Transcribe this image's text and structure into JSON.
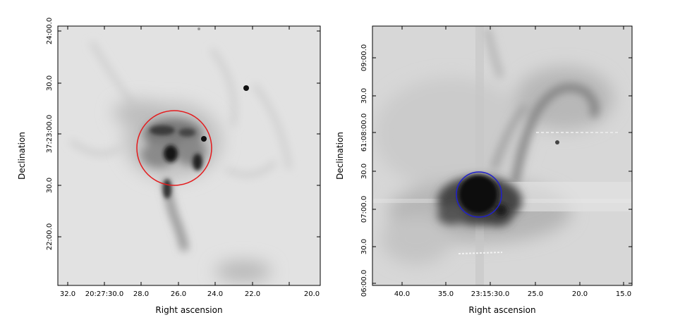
{
  "panels": [
    {
      "xlabel": "Right ascension",
      "ylabel": "Declination",
      "x_ticks": [
        "32.0",
        "20:27:30.0",
        "28.0",
        "26.0",
        "24.0",
        "22.0",
        "20.0"
      ],
      "y_ticks": [
        "24:00.0",
        "30.0",
        "37:23:00.0",
        "30.0",
        "22:00.0"
      ],
      "marker": {
        "shape": "circle",
        "color": "#e41a1c"
      }
    },
    {
      "xlabel": "Right ascension",
      "ylabel": "Declination",
      "x_ticks": [
        "40.0",
        "35.0",
        "23:15:30.0",
        "25.0",
        "20.0",
        "15.0"
      ],
      "y_ticks": [
        "09:00.0",
        "30.0",
        "61:08:00.0",
        "30.0",
        "07:00.0",
        "30.0",
        "06:00.0"
      ],
      "marker": {
        "shape": "circle",
        "color": "#1f1fcc"
      }
    }
  ]
}
